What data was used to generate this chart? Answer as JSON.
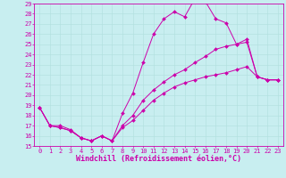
{
  "xlabel": "Windchill (Refroidissement éolien,°C)",
  "xlim": [
    -0.5,
    23.5
  ],
  "ylim": [
    15,
    29
  ],
  "xticks": [
    0,
    1,
    2,
    3,
    4,
    5,
    6,
    7,
    8,
    9,
    10,
    11,
    12,
    13,
    14,
    15,
    16,
    17,
    18,
    19,
    20,
    21,
    22,
    23
  ],
  "yticks": [
    15,
    16,
    17,
    18,
    19,
    20,
    21,
    22,
    23,
    24,
    25,
    26,
    27,
    28,
    29
  ],
  "background_color": "#c8eef0",
  "grid_color": "#b0dede",
  "line_color": "#cc00aa",
  "font_size_tick": 5,
  "font_size_label": 6,
  "curve_upper_x": [
    0,
    1,
    2,
    3,
    4,
    5,
    6,
    7,
    8,
    9,
    10,
    11,
    12,
    13,
    14,
    15,
    16,
    17,
    18,
    19,
    20,
    21,
    22,
    23
  ],
  "curve_upper_y": [
    18.8,
    17.0,
    17.0,
    16.6,
    15.8,
    15.5,
    16.0,
    15.5,
    18.2,
    20.2,
    23.2,
    26.0,
    27.5,
    28.2,
    27.7,
    29.5,
    29.2,
    27.5,
    27.1,
    25.0,
    25.5,
    21.8,
    21.5,
    21.5
  ],
  "curve_mid_x": [
    0,
    1,
    2,
    3,
    4,
    5,
    6,
    7,
    8,
    9,
    10,
    11,
    12,
    13,
    14,
    15,
    16,
    17,
    18,
    19,
    20,
    21,
    22,
    23
  ],
  "curve_mid_y": [
    18.8,
    17.0,
    16.8,
    16.5,
    15.8,
    15.5,
    16.0,
    15.5,
    17.0,
    18.0,
    19.5,
    20.5,
    21.3,
    22.0,
    22.5,
    23.2,
    23.8,
    24.5,
    24.8,
    25.0,
    25.2,
    21.8,
    21.5,
    21.5
  ],
  "curve_lower_x": [
    0,
    1,
    2,
    3,
    4,
    5,
    6,
    7,
    8,
    9,
    10,
    11,
    12,
    13,
    14,
    15,
    16,
    17,
    18,
    19,
    20,
    21,
    22,
    23
  ],
  "curve_lower_y": [
    18.8,
    17.0,
    16.8,
    16.5,
    15.8,
    15.5,
    16.0,
    15.5,
    16.8,
    17.5,
    18.5,
    19.5,
    20.2,
    20.8,
    21.2,
    21.5,
    21.8,
    22.0,
    22.2,
    22.5,
    22.8,
    21.8,
    21.5,
    21.5
  ],
  "marker_size": 2.0,
  "linewidth": 0.7
}
